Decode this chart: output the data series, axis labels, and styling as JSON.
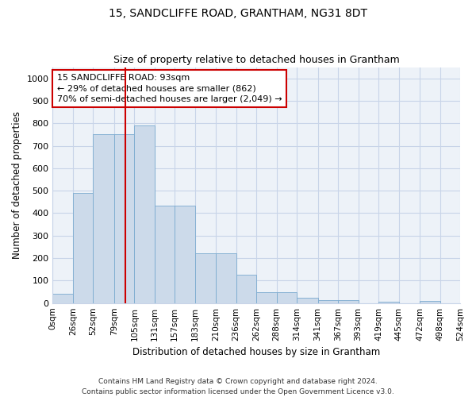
{
  "title": "15, SANDCLIFFE ROAD, GRANTHAM, NG31 8DT",
  "subtitle": "Size of property relative to detached houses in Grantham",
  "xlabel": "Distribution of detached houses by size in Grantham",
  "ylabel": "Number of detached properties",
  "bar_color": "#ccdaea",
  "bar_edge_color": "#7aaacf",
  "vline_x": 93,
  "vline_color": "#cc0000",
  "annotation_text": "15 SANDCLIFFE ROAD: 93sqm\n← 29% of detached houses are smaller (862)\n70% of semi-detached houses are larger (2,049) →",
  "annotation_box_color": "white",
  "annotation_box_edge": "#cc0000",
  "bin_edges": [
    0,
    26,
    52,
    79,
    105,
    131,
    157,
    183,
    210,
    236,
    262,
    288,
    314,
    341,
    367,
    393,
    419,
    445,
    472,
    498,
    524
  ],
  "bar_heights": [
    40,
    490,
    750,
    750,
    790,
    435,
    435,
    220,
    220,
    125,
    50,
    50,
    25,
    12,
    12,
    0,
    5,
    0,
    10,
    0
  ],
  "ylim": [
    0,
    1050
  ],
  "yticks": [
    0,
    100,
    200,
    300,
    400,
    500,
    600,
    700,
    800,
    900,
    1000
  ],
  "grid_color": "#c8d4e8",
  "footer_text": "Contains HM Land Registry data © Crown copyright and database right 2024.\nContains public sector information licensed under the Open Government Licence v3.0.",
  "bg_color": "#edf2f8"
}
